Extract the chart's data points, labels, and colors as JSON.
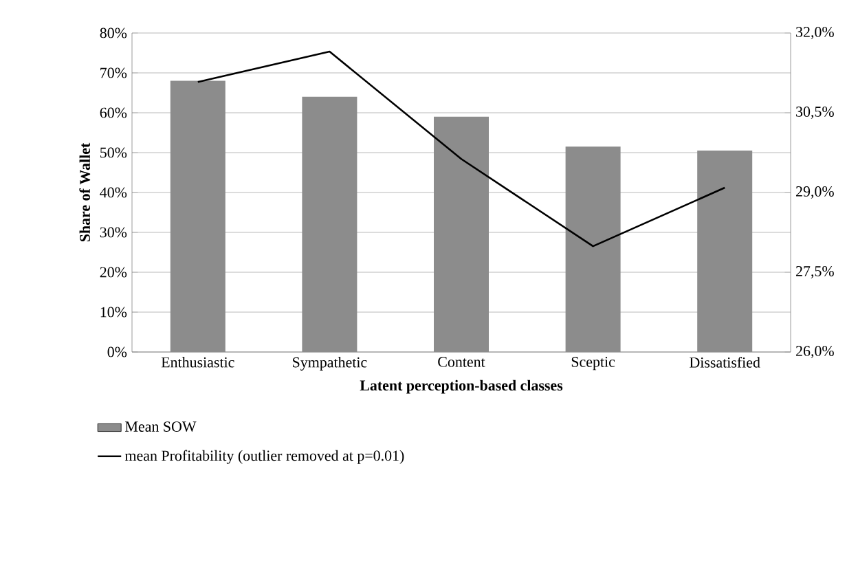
{
  "chart_data": {
    "type": "bar",
    "xlabel": "Latent perception-based classes",
    "ylabel": "Share of Wallet",
    "categories": [
      "Enthusiastic",
      "Sympathetic",
      "Content",
      "Sceptic",
      "Dissatisfied"
    ],
    "series": [
      {
        "name": "Mean SOW",
        "color": "#8c8c8c",
        "values": [
          68,
          64,
          59,
          51.5,
          50.5
        ]
      },
      {
        "name": "mean Profitability (outlier removed at p=0.01)",
        "type": "line",
        "axis": "y2",
        "color": "#000000",
        "values": [
          31.08,
          31.65,
          29.63,
          27.99,
          29.09
        ]
      }
    ],
    "ylim": [
      0,
      80
    ],
    "yticks": [
      {
        "value": 0,
        "label": "0%"
      },
      {
        "value": 10,
        "label": "10%"
      },
      {
        "value": 20,
        "label": "20%"
      },
      {
        "value": 30,
        "label": "30%"
      },
      {
        "value": 40,
        "label": "40%"
      },
      {
        "value": 50,
        "label": "50%"
      },
      {
        "value": 60,
        "label": "60%"
      },
      {
        "value": 70,
        "label": "70%"
      },
      {
        "value": 80,
        "label": "80%"
      }
    ],
    "y2lim": [
      26,
      32
    ],
    "y2ticks": [
      {
        "value": 26,
        "label": "26,0%"
      },
      {
        "value": 27.5,
        "label": "27,5%"
      },
      {
        "value": 29,
        "label": "29,0%"
      },
      {
        "value": 30.5,
        "label": "30,5%"
      },
      {
        "value": 32,
        "label": "32,0%"
      }
    ],
    "grid": "y",
    "legend": "bottom"
  }
}
